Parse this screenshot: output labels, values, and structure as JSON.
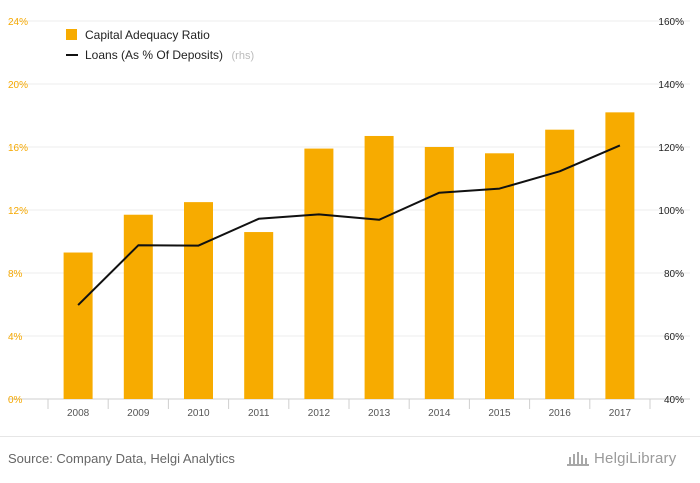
{
  "chart_data": {
    "type": "bar",
    "categories": [
      "2008",
      "2009",
      "2010",
      "2011",
      "2012",
      "2013",
      "2014",
      "2015",
      "2016",
      "2017"
    ],
    "series": [
      {
        "name": "Capital Adequacy Ratio",
        "type": "bar",
        "axis": "left",
        "color": "#f7ab00",
        "values": [
          9.3,
          11.7,
          12.5,
          10.6,
          15.9,
          16.7,
          16.0,
          15.6,
          17.1,
          18.2
        ]
      },
      {
        "name": "Loans (As % Of Deposits)",
        "note": "(rhs)",
        "type": "line",
        "axis": "right",
        "color": "#111111",
        "values": [
          69.8,
          88.8,
          88.7,
          97.2,
          98.6,
          96.9,
          105.5,
          106.8,
          112.3,
          120.5
        ]
      }
    ],
    "y_left": {
      "ylim": [
        0,
        24
      ],
      "ticks": [
        "0%",
        "4%",
        "8%",
        "12%",
        "16%",
        "20%",
        "24%"
      ],
      "color": "#f5a800"
    },
    "y_right": {
      "ylim": [
        40,
        160
      ],
      "ticks": [
        "40%",
        "60%",
        "80%",
        "100%",
        "120%",
        "140%",
        "160%"
      ],
      "color": "#222222"
    },
    "grid": true,
    "legend": "top-left"
  },
  "footer": {
    "source": "Source: Company Data, Helgi Analytics",
    "brand": "HelgiLibrary",
    "brand_icon": "library-building-icon"
  }
}
